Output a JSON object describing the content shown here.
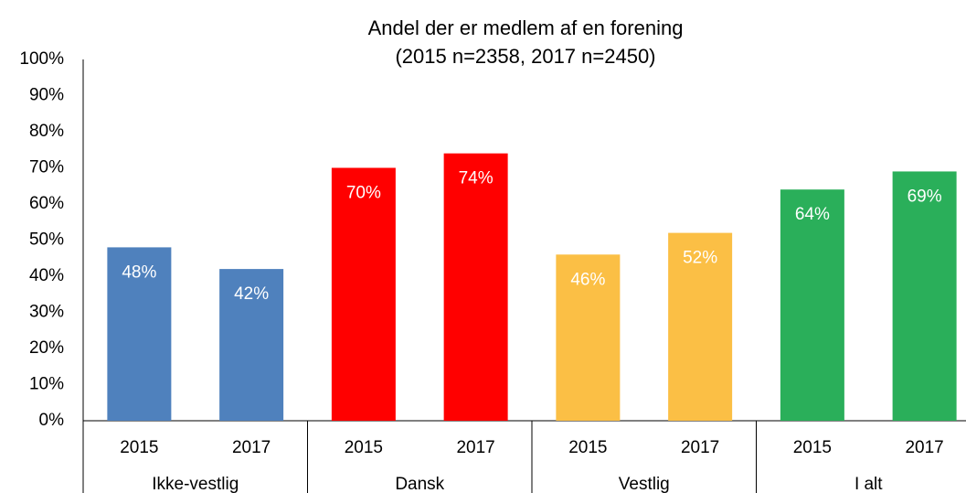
{
  "chart_data": {
    "type": "bar",
    "title": [
      "Andel der er medlem af en forening",
      "(2015 n=2358, 2017 n=2450)"
    ],
    "groups": [
      {
        "name": "Ikke-vestlig",
        "color": "#4f81bd",
        "categories": [
          "2015",
          "2017"
        ],
        "values": [
          48,
          42
        ],
        "value_labels": [
          "48%",
          "42%"
        ]
      },
      {
        "name": "Dansk",
        "color": "#ff0000",
        "categories": [
          "2015",
          "2017"
        ],
        "values": [
          70,
          74
        ],
        "value_labels": [
          "70%",
          "74%"
        ]
      },
      {
        "name": "Vestlig",
        "color": "#fbbf45",
        "categories": [
          "2015",
          "2017"
        ],
        "values": [
          46,
          52
        ],
        "value_labels": [
          "46%",
          "52%"
        ]
      },
      {
        "name": "I alt",
        "color": "#2aaf5a",
        "categories": [
          "2015",
          "2017"
        ],
        "values": [
          64,
          69
        ],
        "value_labels": [
          "64%",
          "69%"
        ]
      }
    ],
    "ylim": [
      0,
      100
    ],
    "yticks": [
      {
        "value": 0,
        "label": "0%"
      },
      {
        "value": 10,
        "label": "10%"
      },
      {
        "value": 20,
        "label": "20%"
      },
      {
        "value": 30,
        "label": "30%"
      },
      {
        "value": 40,
        "label": "40%"
      },
      {
        "value": 50,
        "label": "50%"
      },
      {
        "value": 60,
        "label": "60%"
      },
      {
        "value": 70,
        "label": "70%"
      },
      {
        "value": 80,
        "label": "80%"
      },
      {
        "value": 90,
        "label": "90%"
      },
      {
        "value": 100,
        "label": "100%"
      }
    ],
    "grid": false
  }
}
